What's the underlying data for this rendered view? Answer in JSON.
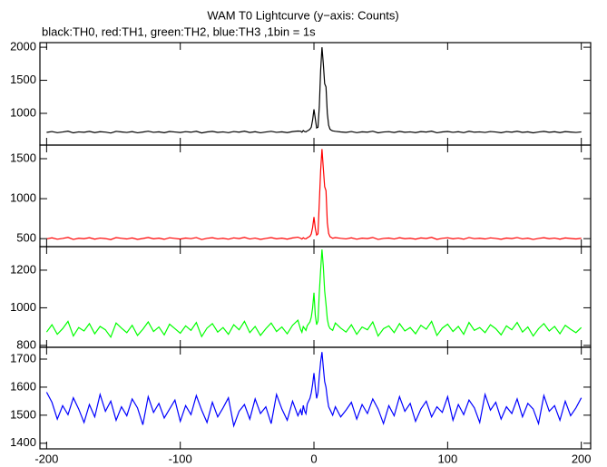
{
  "title": "WAM T0 Lightcurve (y−axis: Counts)",
  "subtitle": "black:TH0, red:TH1, green:TH2, blue:TH3 ,1bin = 1s",
  "chart_data": [
    {
      "type": "line",
      "color": "#000000",
      "x": [
        -200,
        -196,
        -192,
        -188,
        -184,
        -180,
        -176,
        -172,
        -168,
        -164,
        -160,
        -156,
        -152,
        -148,
        -144,
        -140,
        -136,
        -132,
        -128,
        -124,
        -120,
        -116,
        -112,
        -108,
        -104,
        -100,
        -96,
        -92,
        -88,
        -84,
        -80,
        -76,
        -72,
        -68,
        -64,
        -60,
        -56,
        -52,
        -48,
        -44,
        -40,
        -36,
        -32,
        -28,
        -24,
        -20,
        -16,
        -12,
        -10,
        -9,
        -8,
        -7,
        -6,
        -5,
        -4,
        -3,
        -2,
        -1,
        0,
        1,
        2,
        3,
        4,
        5,
        6,
        7,
        8,
        9,
        10,
        11,
        12,
        13,
        14,
        16,
        20,
        24,
        28,
        32,
        36,
        40,
        44,
        48,
        52,
        56,
        60,
        64,
        68,
        72,
        76,
        80,
        84,
        88,
        92,
        96,
        100,
        104,
        108,
        112,
        116,
        120,
        124,
        128,
        132,
        136,
        140,
        144,
        148,
        152,
        156,
        160,
        164,
        168,
        172,
        176,
        180,
        184,
        188,
        192,
        196,
        200
      ],
      "values": [
        712,
        725,
        708,
        718,
        731,
        705,
        720,
        714,
        727,
        709,
        722,
        716,
        703,
        728,
        719,
        711,
        724,
        706,
        717,
        730,
        713,
        721,
        707,
        726,
        718,
        710,
        723,
        715,
        729,
        704,
        719,
        727,
        712,
        720,
        708,
        725,
        716,
        731,
        711,
        722,
        706,
        718,
        728,
        713,
        721,
        709,
        724,
        733,
        730,
        715,
        740,
        725,
        720,
        735,
        745,
        760,
        790,
        900,
        1060,
        920,
        780,
        790,
        1100,
        1650,
        2000,
        1750,
        1450,
        1400,
        1000,
        820,
        760,
        745,
        735,
        728,
        719,
        712,
        725,
        708,
        721,
        716,
        730,
        705,
        718,
        723,
        711,
        727,
        714,
        720,
        709,
        724,
        717,
        731,
        706,
        719,
        726,
        713,
        722,
        708,
        729,
        715,
        720,
        711,
        725,
        718,
        707,
        723,
        716,
        729,
        712,
        721,
        705,
        718,
        727,
        714,
        722,
        709,
        724,
        717,
        711,
        720
      ],
      "xlim": [
        -205,
        207
      ],
      "ylim": [
        520,
        2070
      ],
      "xticks": [
        -200,
        -100,
        0,
        100,
        200
      ],
      "yticks": [
        1000,
        1500,
        2000
      ]
    },
    {
      "type": "line",
      "color": "#ff0000",
      "x": [
        -200,
        -196,
        -192,
        -188,
        -184,
        -180,
        -176,
        -172,
        -168,
        -164,
        -160,
        -156,
        -152,
        -148,
        -144,
        -140,
        -136,
        -132,
        -128,
        -124,
        -120,
        -116,
        -112,
        -108,
        -104,
        -100,
        -96,
        -92,
        -88,
        -84,
        -80,
        -76,
        -72,
        -68,
        -64,
        -60,
        -56,
        -52,
        -48,
        -44,
        -40,
        -36,
        -32,
        -28,
        -24,
        -20,
        -16,
        -12,
        -10,
        -9,
        -8,
        -7,
        -6,
        -5,
        -4,
        -3,
        -2,
        -1,
        0,
        1,
        2,
        3,
        4,
        5,
        6,
        7,
        8,
        9,
        10,
        11,
        12,
        13,
        14,
        16,
        20,
        24,
        28,
        32,
        36,
        40,
        44,
        48,
        52,
        56,
        60,
        64,
        68,
        72,
        76,
        80,
        84,
        88,
        92,
        96,
        100,
        104,
        108,
        112,
        116,
        120,
        124,
        128,
        132,
        136,
        140,
        144,
        148,
        152,
        156,
        160,
        164,
        168,
        172,
        176,
        180,
        184,
        188,
        192,
        196,
        200
      ],
      "values": [
        497,
        510,
        493,
        503,
        516,
        490,
        505,
        499,
        512,
        494,
        507,
        501,
        488,
        513,
        504,
        496,
        509,
        491,
        502,
        515,
        498,
        506,
        492,
        511,
        503,
        495,
        508,
        500,
        514,
        489,
        504,
        512,
        497,
        505,
        493,
        510,
        501,
        516,
        496,
        507,
        491,
        503,
        513,
        498,
        506,
        494,
        509,
        518,
        505,
        495,
        512,
        500,
        498,
        510,
        520,
        530,
        560,
        640,
        770,
        630,
        545,
        560,
        950,
        1350,
        1620,
        1380,
        1150,
        1100,
        700,
        565,
        525,
        515,
        505,
        513,
        504,
        497,
        510,
        493,
        506,
        501,
        515,
        490,
        503,
        508,
        496,
        512,
        499,
        505,
        494,
        509,
        502,
        516,
        491,
        504,
        511,
        498,
        507,
        493,
        514,
        500,
        505,
        496,
        510,
        503,
        492,
        508,
        501,
        514,
        497,
        506,
        490,
        503,
        512,
        499,
        507,
        494,
        509,
        502,
        496,
        505
      ],
      "xlim": [
        -205,
        207
      ],
      "ylim": [
        400,
        1670
      ],
      "xticks": [
        -200,
        -100,
        0,
        100,
        200
      ],
      "yticks": [
        500,
        1000,
        1500
      ]
    },
    {
      "type": "line",
      "color": "#00ff00",
      "x": [
        -200,
        -196,
        -192,
        -188,
        -184,
        -180,
        -176,
        -172,
        -168,
        -164,
        -160,
        -156,
        -152,
        -148,
        -144,
        -140,
        -136,
        -132,
        -128,
        -124,
        -120,
        -116,
        -112,
        -108,
        -104,
        -100,
        -96,
        -92,
        -88,
        -84,
        -80,
        -76,
        -72,
        -68,
        -64,
        -60,
        -56,
        -52,
        -48,
        -44,
        -40,
        -36,
        -32,
        -28,
        -24,
        -20,
        -16,
        -12,
        -10,
        -9,
        -8,
        -7,
        -6,
        -5,
        -4,
        -3,
        -2,
        -1,
        0,
        1,
        2,
        3,
        4,
        5,
        6,
        7,
        8,
        9,
        10,
        11,
        12,
        13,
        14,
        16,
        20,
        24,
        28,
        32,
        36,
        40,
        44,
        48,
        52,
        56,
        60,
        64,
        68,
        72,
        76,
        80,
        84,
        88,
        92,
        96,
        100,
        104,
        108,
        112,
        116,
        120,
        124,
        128,
        132,
        136,
        140,
        144,
        148,
        152,
        156,
        160,
        164,
        168,
        172,
        176,
        180,
        184,
        188,
        192,
        196,
        200
      ],
      "values": [
        871,
        910,
        859,
        889,
        928,
        850,
        895,
        877,
        916,
        862,
        901,
        883,
        844,
        919,
        892,
        868,
        907,
        853,
        886,
        925,
        874,
        898,
        856,
        913,
        889,
        865,
        904,
        880,
        922,
        847,
        892,
        916,
        871,
        895,
        859,
        910,
        883,
        928,
        868,
        901,
        853,
        889,
        919,
        874,
        898,
        862,
        907,
        934,
        885,
        870,
        900,
        890,
        880,
        905,
        915,
        925,
        950,
        1000,
        1080,
        960,
        910,
        930,
        1080,
        1200,
        1310,
        1220,
        1090,
        1020,
        940,
        905,
        890,
        885,
        880,
        919,
        892,
        871,
        910,
        859,
        898,
        883,
        925,
        850,
        889,
        904,
        868,
        916,
        877,
        895,
        862,
        907,
        886,
        928,
        853,
        892,
        913,
        874,
        901,
        859,
        922,
        880,
        895,
        868,
        910,
        889,
        856,
        904,
        883,
        922,
        871,
        898,
        850,
        889,
        916,
        877,
        901,
        862,
        907,
        886,
        868,
        895
      ],
      "xlim": [
        -205,
        207
      ],
      "ylim": [
        790,
        1325
      ],
      "xticks": [
        -200,
        -100,
        0,
        100,
        200
      ],
      "yticks": [
        800,
        1000,
        1200
      ]
    },
    {
      "type": "line",
      "color": "#0000ff",
      "x": [
        -200,
        -196,
        -192,
        -188,
        -184,
        -180,
        -176,
        -172,
        -168,
        -164,
        -160,
        -156,
        -152,
        -148,
        -144,
        -140,
        -136,
        -132,
        -128,
        -124,
        -120,
        -116,
        -112,
        -108,
        -104,
        -100,
        -96,
        -92,
        -88,
        -84,
        -80,
        -76,
        -72,
        -68,
        -64,
        -60,
        -56,
        -52,
        -48,
        -44,
        -40,
        -36,
        -32,
        -28,
        -24,
        -20,
        -16,
        -12,
        -10,
        -9,
        -8,
        -7,
        -6,
        -5,
        -4,
        -3,
        -2,
        -1,
        0,
        1,
        2,
        3,
        4,
        5,
        6,
        7,
        8,
        9,
        10,
        11,
        12,
        13,
        14,
        16,
        20,
        24,
        28,
        32,
        36,
        40,
        44,
        48,
        52,
        56,
        60,
        64,
        68,
        72,
        76,
        80,
        84,
        88,
        92,
        96,
        100,
        104,
        108,
        112,
        116,
        120,
        124,
        128,
        132,
        136,
        140,
        144,
        148,
        152,
        156,
        160,
        164,
        168,
        172,
        176,
        180,
        184,
        188,
        192,
        196,
        200
      ],
      "values": [
        1582,
        1546,
        1486,
        1534,
        1502,
        1562,
        1522,
        1474,
        1538,
        1494,
        1574,
        1514,
        1550,
        1482,
        1530,
        1498,
        1558,
        1526,
        1466,
        1566,
        1510,
        1542,
        1490,
        1522,
        1554,
        1478,
        1534,
        1502,
        1570,
        1518,
        1474,
        1546,
        1494,
        1526,
        1562,
        1462,
        1514,
        1538,
        1486,
        1558,
        1506,
        1530,
        1470,
        1574,
        1522,
        1482,
        1550,
        1498,
        1520,
        1500,
        1535,
        1515,
        1505,
        1540,
        1550,
        1560,
        1580,
        1610,
        1650,
        1600,
        1560,
        1580,
        1640,
        1690,
        1725,
        1670,
        1620,
        1600,
        1560,
        1530,
        1520,
        1510,
        1500,
        1530,
        1494,
        1518,
        1546,
        1486,
        1538,
        1506,
        1558,
        1522,
        1470,
        1534,
        1498,
        1566,
        1514,
        1542,
        1478,
        1522,
        1550,
        1494,
        1530,
        1510,
        1566,
        1482,
        1538,
        1502,
        1554,
        1526,
        1474,
        1574,
        1518,
        1546,
        1486,
        1530,
        1506,
        1558,
        1494,
        1542,
        1522,
        1470,
        1570,
        1514,
        1534,
        1482,
        1550,
        1498,
        1526,
        1562
      ],
      "xlim": [
        -205,
        207
      ],
      "ylim": [
        1380,
        1742
      ],
      "xticks": [
        -200,
        -100,
        0,
        100,
        200
      ],
      "yticks": [
        1400,
        1500,
        1600,
        1700
      ]
    }
  ]
}
